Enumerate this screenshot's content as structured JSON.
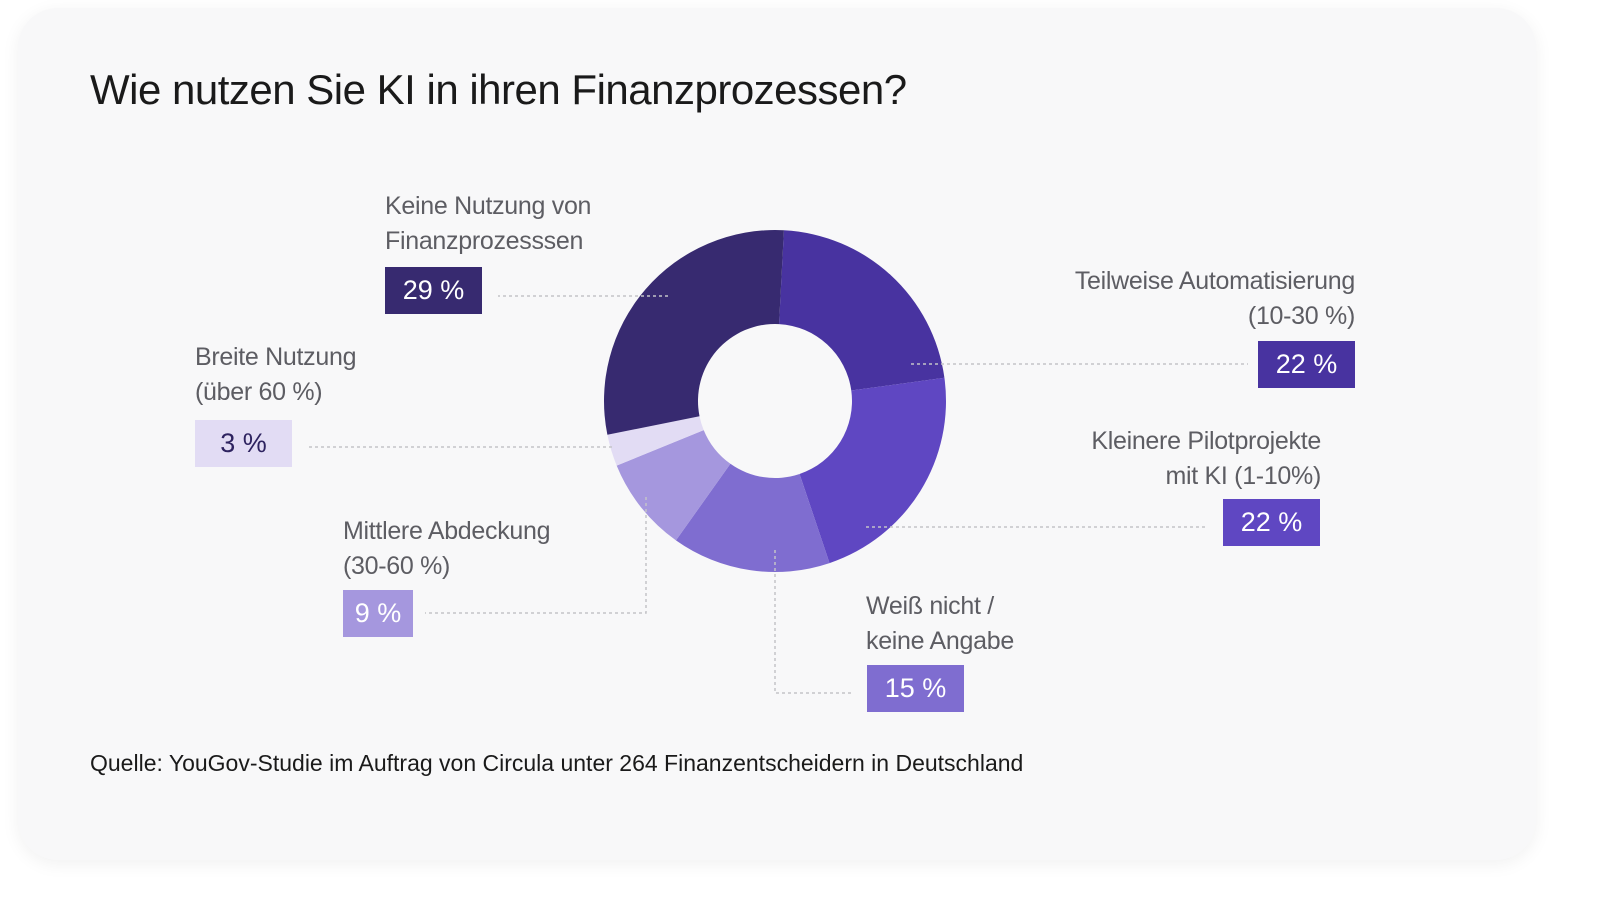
{
  "title": "Wie nutzen Sie KI in ihren Finanzprozessen?",
  "source": "Quelle: YouGov-Studie im Auftrag von Circula unter 264 Finanzentscheidern in Deutschland",
  "chart_data": {
    "type": "pie",
    "title": "Wie nutzen Sie KI in ihren Finanzprozessen?",
    "categories": [
      "Teilweise Automatisierung (10-30 %)",
      "Kleinere Pilotprojekte mit KI (1-10%)",
      "Weiß nicht / keine Angabe",
      "Mittlere Abdeckung (30-60 %)",
      "Breite Nutzung (über 60 %)",
      "Keine Nutzung von Finanzprozesssen"
    ],
    "values": [
      22,
      22,
      15,
      9,
      3,
      29
    ],
    "value_labels": [
      "22 %",
      "22 %",
      "15 %",
      "9 %",
      "3 %",
      "29 %"
    ],
    "label_lines": [
      [
        "Teilweise Automatisierung",
        "(10-30 %)"
      ],
      [
        "Kleinere Pilotprojekte",
        "mit KI (1-10%)"
      ],
      [
        "Weiß nicht /",
        "keine Angabe"
      ],
      [
        "Mittlere Abdeckung",
        "(30-60 %)"
      ],
      [
        "Breite Nutzung",
        "(über 60 %)"
      ],
      [
        "Keine Nutzung von",
        "Finanzprozesssen"
      ]
    ],
    "colors": [
      "#4833a0",
      "#5f47c2",
      "#7f6dd0",
      "#a597de",
      "#e2dcf4",
      "#372a70"
    ],
    "badge_text_colors": [
      "#ffffff",
      "#ffffff",
      "#ffffff",
      "#ffffff",
      "#2e2360",
      "#ffffff"
    ],
    "donut": true,
    "legend": "none"
  }
}
